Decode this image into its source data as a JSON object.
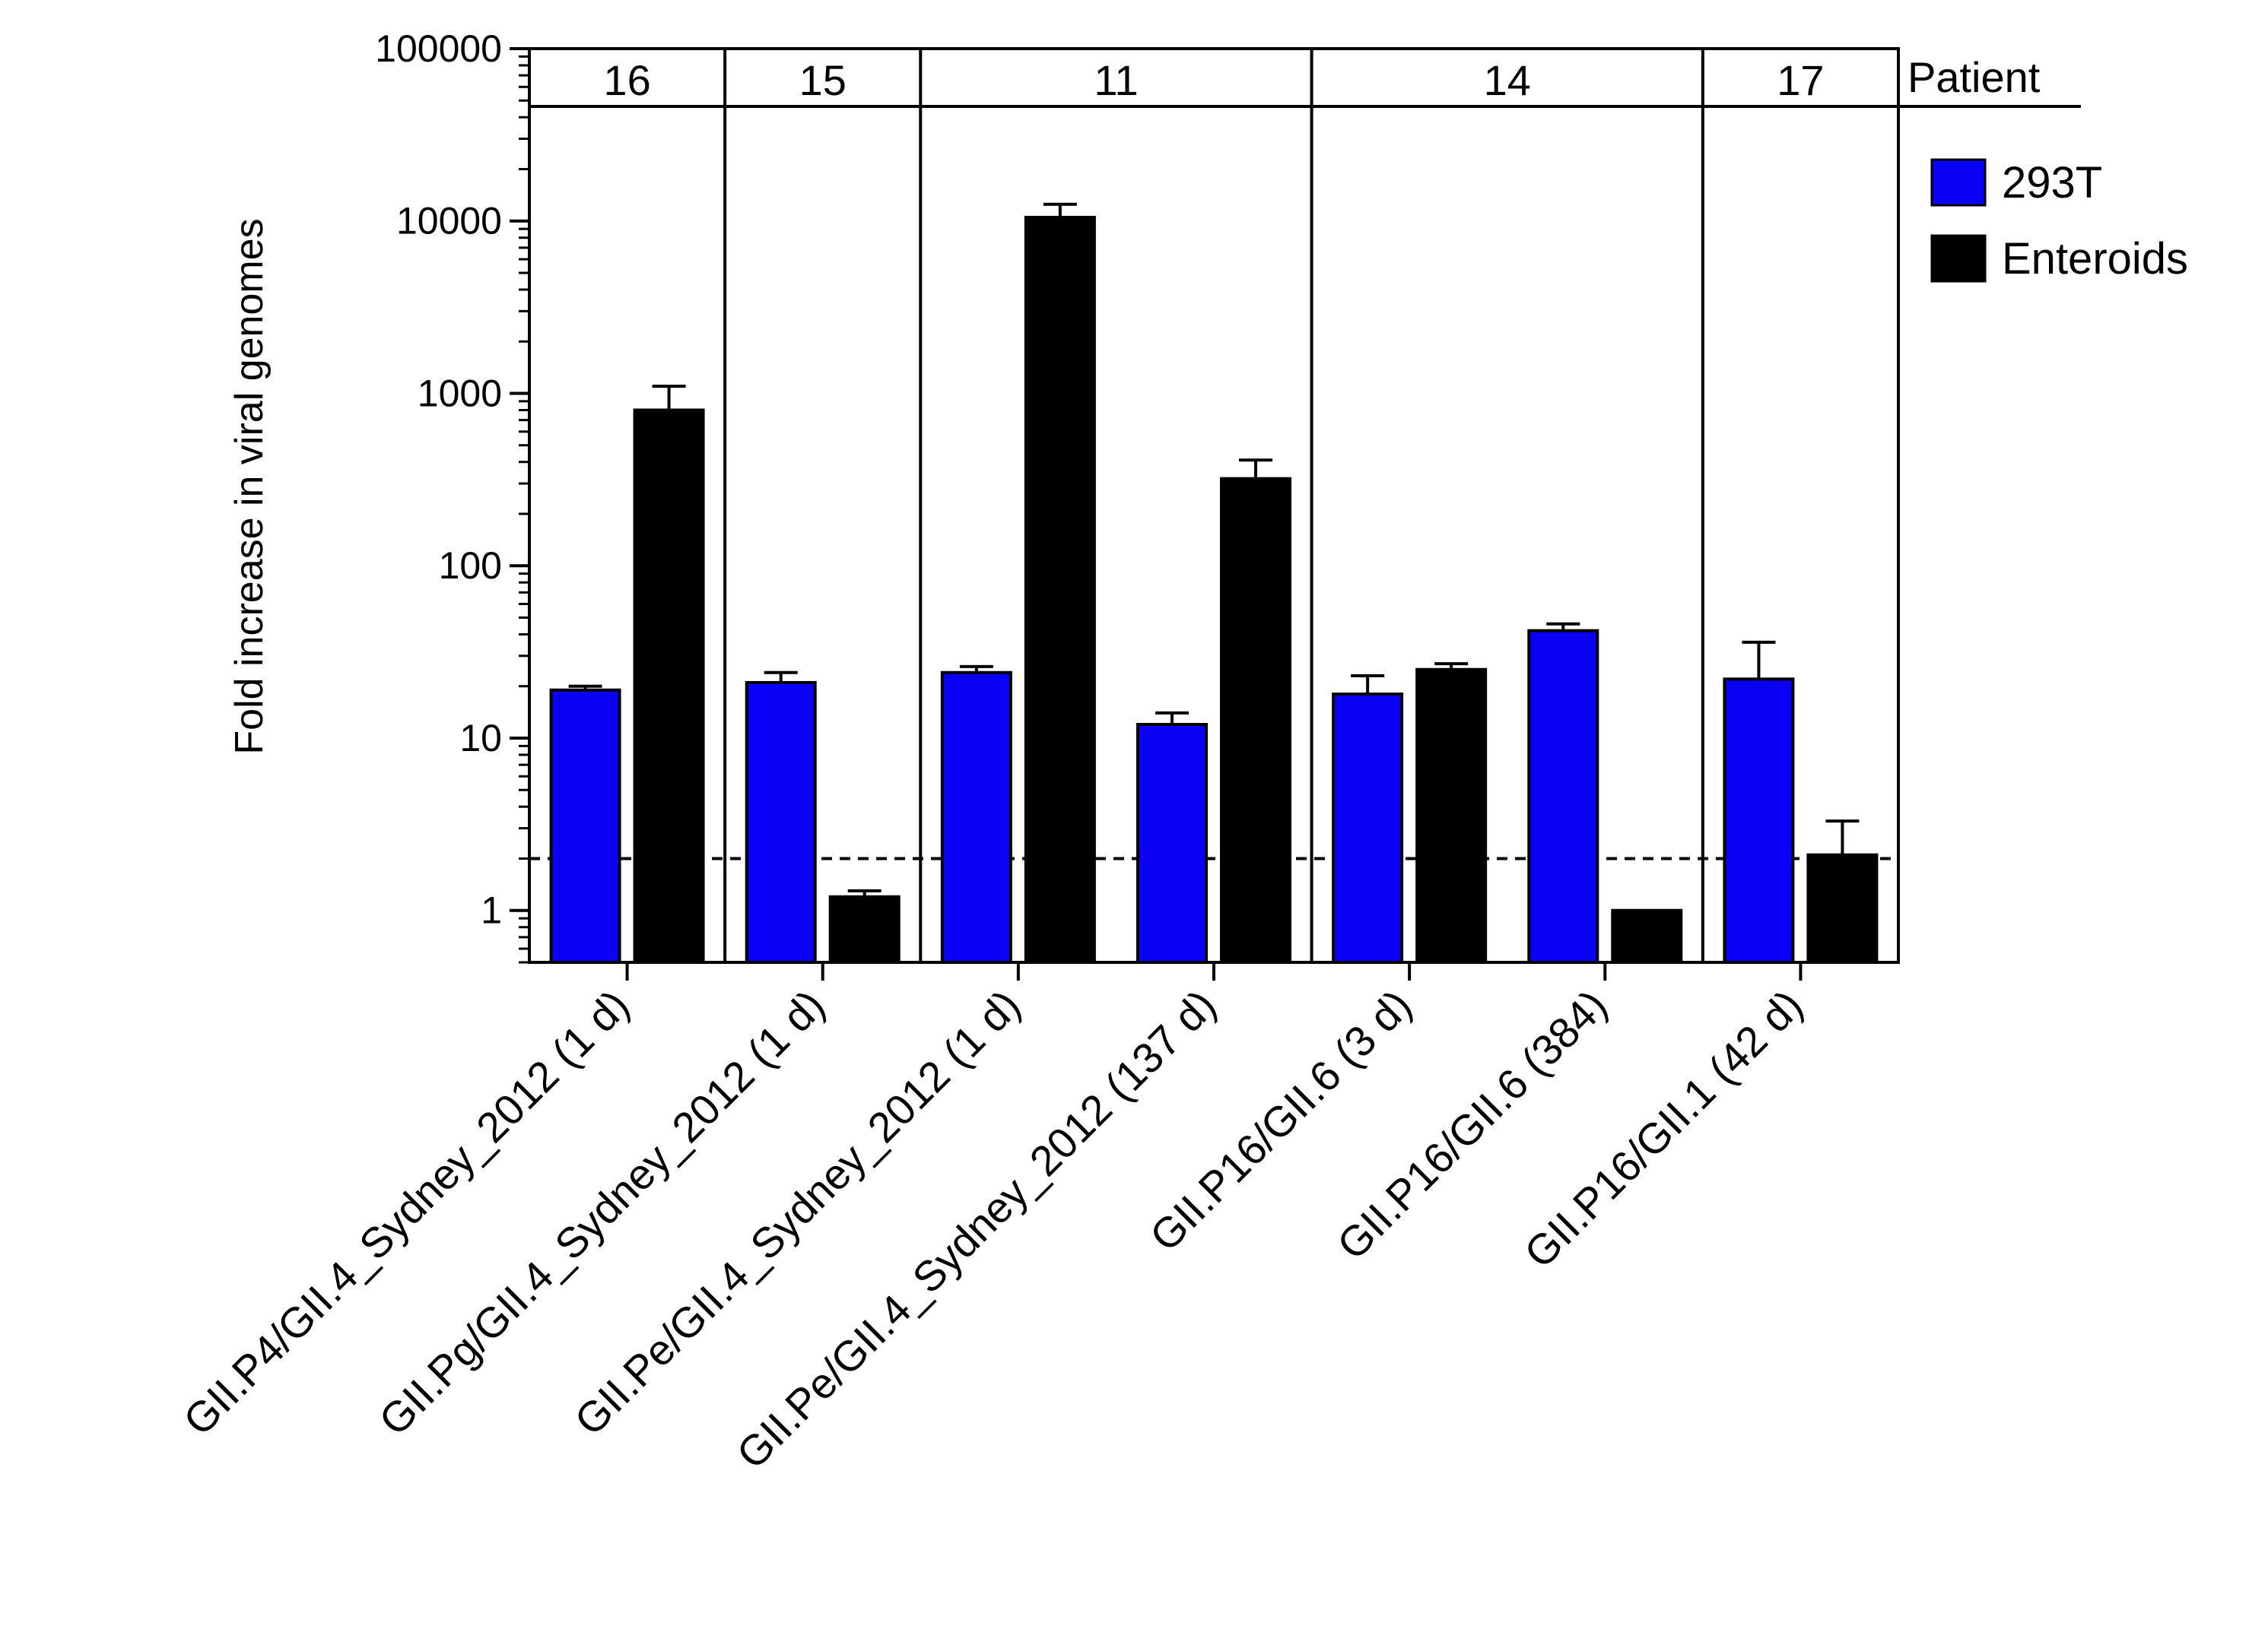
{
  "chart_data": {
    "type": "bar",
    "ylabel": "Fold increase in viral genomes",
    "yscale": "log",
    "ylim": [
      0.5,
      100000
    ],
    "yticks": [
      {
        "value": 1,
        "label": "1"
      },
      {
        "value": 10,
        "label": "10"
      },
      {
        "value": 100,
        "label": "100"
      },
      {
        "value": 1000,
        "label": "1000"
      },
      {
        "value": 10000,
        "label": "10000"
      },
      {
        "value": 100000,
        "label": "100000"
      }
    ],
    "threshold": 2,
    "categories": [
      "GII.P4/GII.4_Sydney_2012 (1 d)",
      "GII.Pg/GII.4_Sydney_2012 (1 d)",
      "GII.Pe/GII.4_Sydney_2012 (1 d)",
      "GII.Pe/GII.4_Sydney_2012 (137 d)",
      "GII.P16/GII.6 (3 d)",
      "GII.P16/GII.6 (384)",
      "GII.P16/GII.1 (42 d)"
    ],
    "series": [
      {
        "name": "293T",
        "color": "#0a00f5",
        "values": [
          19,
          21,
          24,
          12,
          18,
          42,
          22
        ],
        "errors": [
          20,
          24,
          26,
          14,
          23,
          46,
          36
        ]
      },
      {
        "name": "Enteroids",
        "color": "#000000",
        "values": [
          800,
          1.2,
          10500,
          320,
          25,
          1,
          2.1
        ],
        "errors": [
          1100,
          1.3,
          12500,
          410,
          27,
          1,
          3.3
        ]
      }
    ],
    "patient_header": "Patient",
    "patient_groups": [
      {
        "label": "16",
        "start": 0,
        "end": 0
      },
      {
        "label": "15",
        "start": 1,
        "end": 1
      },
      {
        "label": "11",
        "start": 2,
        "end": 3
      },
      {
        "label": "14",
        "start": 4,
        "end": 5
      },
      {
        "label": "17",
        "start": 6,
        "end": 6
      }
    ],
    "legend_position": "right-top"
  }
}
